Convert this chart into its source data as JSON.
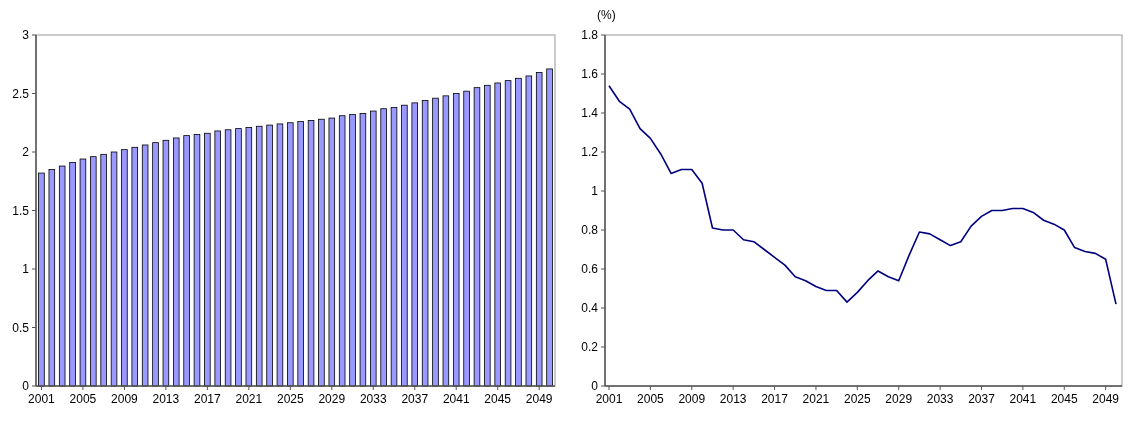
{
  "chart_data": [
    {
      "type": "bar",
      "categories": [
        "2001",
        null,
        null,
        null,
        "2005",
        null,
        null,
        null,
        "2009",
        null,
        null,
        null,
        "2013",
        null,
        null,
        null,
        "2017",
        null,
        null,
        null,
        "2021",
        null,
        null,
        null,
        "2025",
        null,
        null,
        null,
        "2029",
        null,
        null,
        null,
        "2033",
        null,
        null,
        null,
        "2037",
        null,
        null,
        null,
        "2041",
        null,
        null,
        null,
        "2045",
        null,
        null,
        null,
        "2049",
        null
      ],
      "values": [
        1.82,
        1.85,
        1.88,
        1.91,
        1.94,
        1.96,
        1.98,
        2.0,
        2.02,
        2.04,
        2.06,
        2.08,
        2.1,
        2.12,
        2.14,
        2.15,
        2.16,
        2.18,
        2.19,
        2.2,
        2.21,
        2.22,
        2.23,
        2.24,
        2.25,
        2.26,
        2.27,
        2.28,
        2.29,
        2.31,
        2.32,
        2.33,
        2.35,
        2.37,
        2.38,
        2.4,
        2.42,
        2.44,
        2.46,
        2.48,
        2.5,
        2.52,
        2.55,
        2.57,
        2.59,
        2.61,
        2.63,
        2.65,
        2.68,
        2.71
      ],
      "color": "#9999ff",
      "ylim": [
        0,
        3
      ],
      "yticks": [
        0,
        0.5,
        1,
        1.5,
        2,
        2.5,
        3
      ],
      "grid": false
    },
    {
      "type": "line",
      "ylabel": "(%)",
      "categories": [
        "2001",
        null,
        null,
        null,
        "2005",
        null,
        null,
        null,
        "2009",
        null,
        null,
        null,
        "2013",
        null,
        null,
        null,
        "2017",
        null,
        null,
        null,
        "2021",
        null,
        null,
        null,
        "2025",
        null,
        null,
        null,
        "2029",
        null,
        null,
        null,
        "2033",
        null,
        null,
        null,
        "2037",
        null,
        null,
        null,
        "2041",
        null,
        null,
        null,
        "2045",
        null,
        null,
        null,
        "2049",
        null
      ],
      "values": [
        1.54,
        1.46,
        1.42,
        1.32,
        1.27,
        1.19,
        1.09,
        1.11,
        1.11,
        1.04,
        0.81,
        0.8,
        0.8,
        0.75,
        0.74,
        0.7,
        0.66,
        0.62,
        0.56,
        0.54,
        0.51,
        0.49,
        0.49,
        0.43,
        0.48,
        0.54,
        0.59,
        0.56,
        0.54,
        0.67,
        0.79,
        0.78,
        0.75,
        0.72,
        0.74,
        0.82,
        0.87,
        0.9,
        0.9,
        0.91,
        0.91,
        0.89,
        0.85,
        0.83,
        0.8,
        0.71,
        0.69,
        0.68,
        0.65,
        0.42
      ],
      "color": "#000080",
      "ylim": [
        0,
        1.8
      ],
      "yticks": [
        0,
        0.2,
        0.4,
        0.6,
        0.8,
        1,
        1.2,
        1.4,
        1.6,
        1.8
      ],
      "grid": false,
      "marker": "none",
      "line_style": "solid"
    }
  ]
}
